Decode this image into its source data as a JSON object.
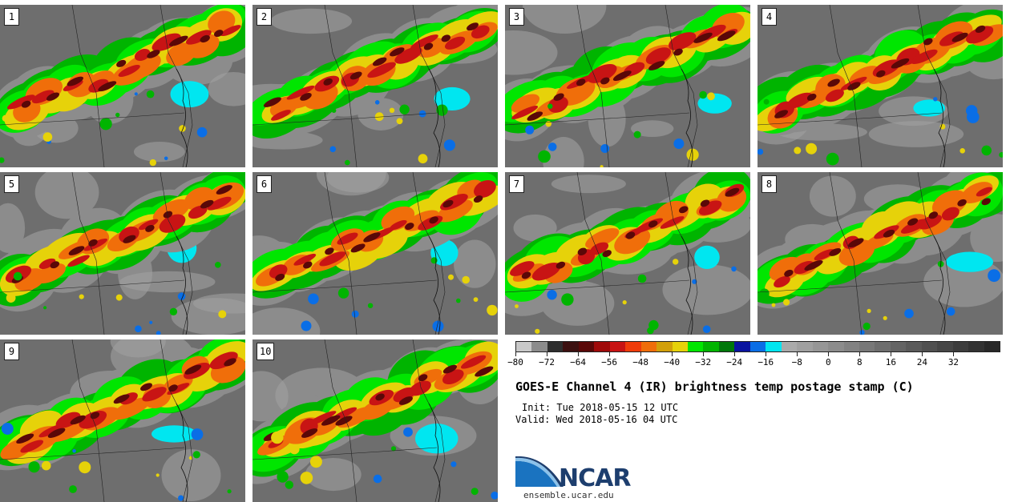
{
  "panels": [
    {
      "label": "1"
    },
    {
      "label": "2"
    },
    {
      "label": "3"
    },
    {
      "label": "4"
    },
    {
      "label": "5"
    },
    {
      "label": "6"
    },
    {
      "label": "7"
    },
    {
      "label": "8"
    },
    {
      "label": "9"
    },
    {
      "label": "10"
    }
  ],
  "colorbar": {
    "colors": [
      "#c8c8c8",
      "#8c8c8c",
      "#2e2e2e",
      "#3c1010",
      "#5a0808",
      "#a00a0a",
      "#c81414",
      "#f03c0a",
      "#f06e0a",
      "#d2a00a",
      "#e6d20a",
      "#00e600",
      "#00b400",
      "#00780a",
      "#0a14a0",
      "#0a6ee6",
      "#00e6f0",
      "#aaaaaa",
      "#a0a0a0",
      "#969696",
      "#8c8c8c",
      "#828282",
      "#787878",
      "#6e6e6e",
      "#646464",
      "#5a5a5a",
      "#505050",
      "#464646",
      "#3c3c3c",
      "#323232",
      "#282828"
    ],
    "min": -80,
    "max": 44,
    "ticks": [
      "−80",
      "−72",
      "−64",
      "−56",
      "−48",
      "−40",
      "−32",
      "−24",
      "−16",
      "−8",
      "0",
      "8",
      "16",
      "24",
      "32"
    ],
    "tick_values": [
      -80,
      -72,
      -64,
      -56,
      -48,
      -40,
      -32,
      -24,
      -16,
      -8,
      0,
      8,
      16,
      24,
      32
    ]
  },
  "title": "GOES-E Channel 4 (IR) brightness temp postage stamp (C)",
  "init": "Init: Tue 2018-05-15 12 UTC",
  "valid": "Valid: Wed 2018-05-16 04 UTC",
  "logo": {
    "text": "NCAR",
    "icon": "ncar-swoosh-logo",
    "url_text": "ensemble.ucar.edu"
  }
}
